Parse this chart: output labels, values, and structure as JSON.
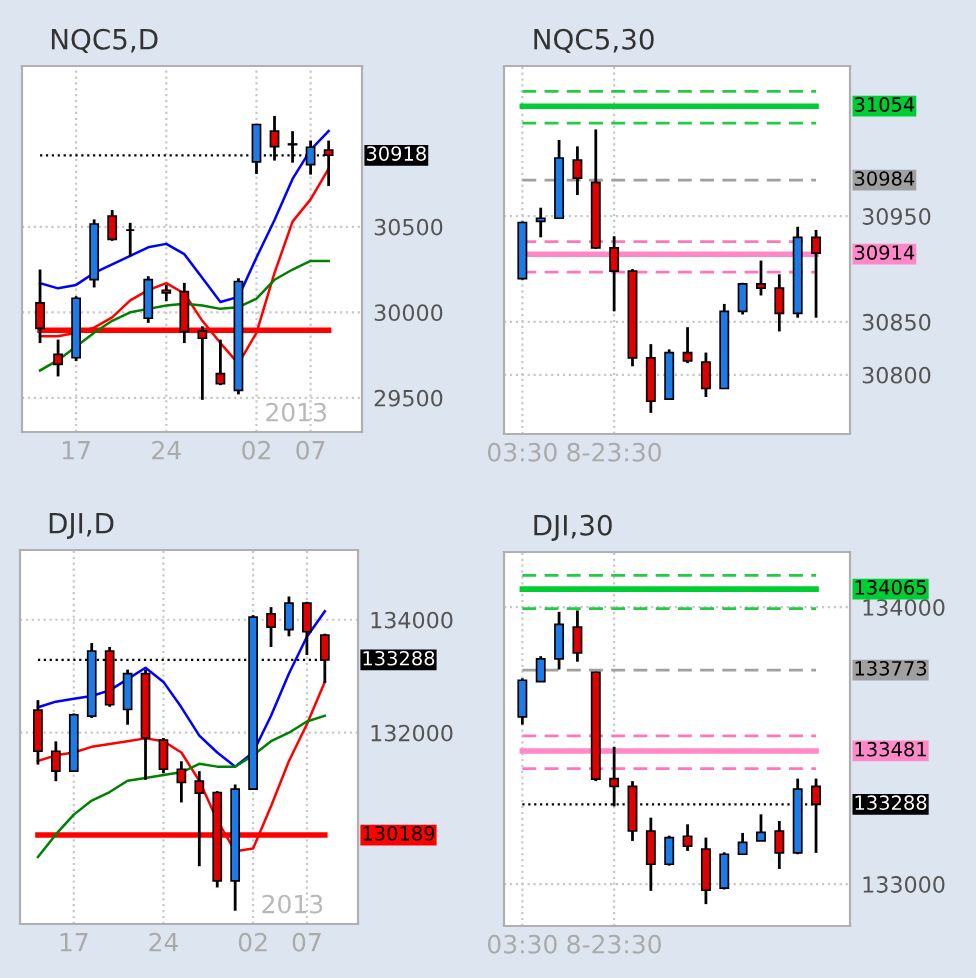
{
  "chart_data": [
    {
      "type": "candlestick",
      "title": "NQC5,D",
      "categories": [
        null,
        null,
        "17",
        null,
        null,
        null,
        null,
        "24",
        null,
        null,
        null,
        null,
        "02",
        null,
        null,
        "07",
        null
      ],
      "ohlc": [
        [
          30055,
          30250,
          29820,
          29906
        ],
        [
          29754,
          29840,
          29625,
          29695
        ],
        [
          29734,
          30094,
          29715,
          30082
        ],
        [
          30191,
          30543,
          30145,
          30516
        ],
        [
          30563,
          30598,
          30418,
          30426
        ],
        [
          30480,
          30523,
          30328,
          30480
        ],
        [
          29965,
          30211,
          29938,
          30191
        ],
        [
          30129,
          30160,
          30066,
          30113
        ],
        [
          30121,
          30172,
          29820,
          29887
        ],
        [
          29891,
          29918,
          29488,
          29848
        ],
        [
          29641,
          29840,
          29574,
          29582
        ],
        [
          29543,
          30199,
          29520,
          30180
        ],
        [
          30879,
          31102,
          30809,
          31098
        ],
        [
          31059,
          31148,
          30887,
          30969
        ],
        [
          30980,
          31059,
          30875,
          30984
        ],
        [
          30863,
          31004,
          30805,
          30965
        ],
        [
          30949,
          31004,
          30738,
          30918
        ]
      ],
      "colors": [
        "#e00000",
        "#e00000",
        "#1e7be6",
        "#1e7be6",
        "#e00000",
        "#000000",
        "#1e7be6",
        "#e00000",
        "#e00000",
        "#e00000",
        "#e00000",
        "#1e7be6",
        "#1e7be6",
        "#e00000",
        "#1e7be6",
        "#1e7be6",
        "#e00000"
      ],
      "series": [
        {
          "type": "line",
          "color": "#0000ff",
          "values": [
            30170,
            30140,
            30160,
            30230,
            30280,
            30330,
            30380,
            30400,
            30340,
            30200,
            30060,
            30090,
            30320,
            30540,
            30780,
            30950,
            31060
          ]
        },
        {
          "type": "line",
          "color": "#ff0000",
          "values": [
            29860,
            29860,
            29880,
            29910,
            29970,
            30070,
            30130,
            30170,
            30110,
            29950,
            29820,
            29700,
            29880,
            30230,
            30530,
            30660,
            30840
          ]
        },
        {
          "type": "line",
          "color": "#008000",
          "values": [
            29660,
            29720,
            29800,
            29880,
            29950,
            30000,
            30020,
            30040,
            30050,
            30040,
            30020,
            30030,
            30080,
            30190,
            30250,
            30300,
            30300
          ]
        }
      ],
      "ref_lines": [
        {
          "axis": "y",
          "value": 29895,
          "color": "#ff0000",
          "line_style": "solid"
        },
        {
          "axis": "y",
          "value": 30918,
          "color": "#000000",
          "line_style": "dotted",
          "label": "30918"
        }
      ],
      "ylim": [
        29300,
        31440
      ],
      "yticks": [
        29500,
        30000,
        30500
      ],
      "grid": true,
      "annotations": [
        "2013"
      ]
    },
    {
      "type": "candlestick",
      "title": "NQC5,30",
      "categories": [
        "03:30",
        null,
        null,
        null,
        null,
        "8-23:30",
        null,
        null,
        null,
        null,
        null,
        null,
        null,
        null,
        null,
        null,
        null
      ],
      "ohlc": [
        [
          30891,
          30945,
          30890,
          30944
        ],
        [
          30945,
          30958,
          30930,
          30948
        ],
        [
          30948,
          31022,
          30948,
          31005
        ],
        [
          31003,
          31016,
          30970,
          30986
        ],
        [
          30982,
          31032,
          30919,
          30920
        ],
        [
          30920,
          30931,
          30860,
          30898
        ],
        [
          30898,
          30900,
          30808,
          30816
        ],
        [
          30816,
          30829,
          30764,
          30775
        ],
        [
          30777,
          30824,
          30777,
          30821
        ],
        [
          30821,
          30845,
          30811,
          30813
        ],
        [
          30812,
          30821,
          30779,
          30787
        ],
        [
          30787,
          30867,
          30787,
          30860
        ],
        [
          30860,
          30887,
          30857,
          30886
        ],
        [
          30886,
          30908,
          30875,
          30882
        ],
        [
          30882,
          30895,
          30841,
          30858
        ],
        [
          30858,
          30940,
          30854,
          30930
        ],
        [
          30930,
          30937,
          30854,
          30915
        ]
      ],
      "colors": [
        "#1e7be6",
        "#1e7be6",
        "#1e7be6",
        "#e00000",
        "#e00000",
        "#e00000",
        "#e00000",
        "#e00000",
        "#1e7be6",
        "#e00000",
        "#e00000",
        "#1e7be6",
        "#1e7be6",
        "#e00000",
        "#e00000",
        "#1e7be6",
        "#e00000"
      ],
      "ref_lines": [
        {
          "axis": "y",
          "value": 31068,
          "color": "#22cc44",
          "line_style": "dashed"
        },
        {
          "axis": "y",
          "value": 31054,
          "color": "#00cc33",
          "line_style": "solid",
          "label": "31054"
        },
        {
          "axis": "y",
          "value": 31038,
          "color": "#22cc44",
          "line_style": "dashed"
        },
        {
          "axis": "y",
          "value": 30984,
          "color": "#a0a0a0",
          "line_style": "dashed",
          "label": "30984"
        },
        {
          "axis": "y",
          "value": 30926,
          "color": "#ff77bb",
          "line_style": "dashed"
        },
        {
          "axis": "y",
          "value": 30914,
          "color": "#ff88c8",
          "line_style": "solid",
          "label": "30914"
        },
        {
          "axis": "y",
          "value": 30897,
          "color": "#ff77bb",
          "line_style": "dashed"
        }
      ],
      "ylim": [
        30744,
        31092
      ],
      "yticks": [
        30800,
        30850,
        30950
      ],
      "grid": true
    },
    {
      "type": "candlestick",
      "title": "DJI,D",
      "categories": [
        null,
        null,
        "17",
        null,
        null,
        null,
        null,
        "24",
        null,
        null,
        null,
        null,
        "02",
        null,
        null,
        "07",
        null
      ],
      "ohlc": [
        [
          132401,
          132577,
          131436,
          131672
        ],
        [
          131672,
          131848,
          131142,
          131319
        ],
        [
          131319,
          132342,
          131319,
          132318
        ],
        [
          132295,
          133588,
          132260,
          133447
        ],
        [
          133447,
          133518,
          132460,
          132495
        ],
        [
          132412,
          133118,
          132142,
          133047
        ],
        [
          133047,
          133118,
          131166,
          131907
        ],
        [
          131871,
          131907,
          131283,
          131354
        ],
        [
          131354,
          131495,
          130766,
          131119
        ],
        [
          131142,
          131319,
          129637,
          130931
        ],
        [
          130942,
          130966,
          129261,
          129378
        ],
        [
          129378,
          131084,
          128849,
          131001
        ],
        [
          131001,
          134082,
          131001,
          134047
        ],
        [
          134106,
          134223,
          133518,
          133871
        ],
        [
          133824,
          134412,
          133706,
          134294
        ],
        [
          134294,
          134318,
          133377,
          133788
        ],
        [
          133729,
          133753,
          132883,
          133288
        ]
      ],
      "colors": [
        "#e00000",
        "#e00000",
        "#1e7be6",
        "#1e7be6",
        "#e00000",
        "#1e7be6",
        "#e00000",
        "#e00000",
        "#e00000",
        "#e00000",
        "#e00000",
        "#1e7be6",
        "#1e7be6",
        "#e00000",
        "#1e7be6",
        "#e00000",
        "#e00000"
      ],
      "series": [
        {
          "type": "line",
          "color": "#0000ff",
          "values": [
            132450,
            132550,
            132600,
            132650,
            132750,
            132950,
            133150,
            132900,
            132450,
            131950,
            131650,
            131400,
            131650,
            132300,
            133050,
            133700,
            134150
          ]
        },
        {
          "type": "line",
          "color": "#ff0000",
          "values": [
            131500,
            131600,
            131650,
            131750,
            131800,
            131850,
            131900,
            131850,
            131650,
            131150,
            130450,
            129900,
            129950,
            130700,
            131500,
            132150,
            132900
          ]
        },
        {
          "type": "line",
          "color": "#008000",
          "values": [
            129800,
            130200,
            130550,
            130800,
            130950,
            131150,
            131200,
            131250,
            131300,
            131450,
            131400,
            131400,
            131600,
            131850,
            132000,
            132200,
            132300
          ]
        }
      ],
      "ref_lines": [
        {
          "axis": "y",
          "value": 130189,
          "color": "#ff0000",
          "line_style": "solid",
          "label": "130189"
        },
        {
          "axis": "y",
          "value": 133288,
          "color": "#000000",
          "line_style": "dotted",
          "label": "133288"
        }
      ],
      "ylim": [
        128614,
        135235
      ],
      "yticks": [
        132000,
        134000
      ],
      "grid": true,
      "annotations": [
        "2013"
      ]
    },
    {
      "type": "candlestick",
      "title": "DJI,30",
      "categories": [
        "03:30",
        null,
        null,
        null,
        null,
        "8-23:30",
        null,
        null,
        null,
        null,
        null,
        null,
        null,
        null,
        null,
        null,
        null
      ],
      "ohlc": [
        [
          133604,
          133743,
          133576,
          133736
        ],
        [
          133731,
          133823,
          133731,
          133813
        ],
        [
          133813,
          133983,
          133775,
          133938
        ],
        [
          133928,
          133988,
          133803,
          133835
        ],
        [
          133765,
          133767,
          133372,
          133379
        ],
        [
          133381,
          133496,
          133281,
          133353
        ],
        [
          133353,
          133372,
          133156,
          133192
        ],
        [
          133192,
          133240,
          132976,
          133072
        ],
        [
          133072,
          133175,
          133067,
          133168
        ],
        [
          133173,
          133216,
          133120,
          133137
        ],
        [
          133127,
          133168,
          132928,
          132978
        ],
        [
          132986,
          133115,
          132981,
          133108
        ],
        [
          133108,
          133185,
          133108,
          133151
        ],
        [
          133156,
          133252,
          133156,
          133187
        ],
        [
          133192,
          133228,
          133055,
          133113
        ],
        [
          133113,
          133381,
          133108,
          133343
        ],
        [
          133353,
          133381,
          133113,
          133288
        ]
      ],
      "colors": [
        "#1e7be6",
        "#1e7be6",
        "#1e7be6",
        "#e00000",
        "#e00000",
        "#e00000",
        "#e00000",
        "#e00000",
        "#1e7be6",
        "#e00000",
        "#e00000",
        "#1e7be6",
        "#1e7be6",
        "#1e7be6",
        "#e00000",
        "#1e7be6",
        "#e00000"
      ],
      "ref_lines": [
        {
          "axis": "y",
          "value": 134115,
          "color": "#22cc44",
          "line_style": "dashed"
        },
        {
          "axis": "y",
          "value": 134065,
          "color": "#00cc33",
          "line_style": "solid",
          "label": "134065"
        },
        {
          "axis": "y",
          "value": 133995,
          "color": "#22cc44",
          "line_style": "dashed"
        },
        {
          "axis": "y",
          "value": 133773,
          "color": "#a0a0a0",
          "line_style": "dashed",
          "label": "133773"
        },
        {
          "axis": "y",
          "value": 133535,
          "color": "#ff77bb",
          "line_style": "dashed"
        },
        {
          "axis": "y",
          "value": 133481,
          "color": "#ff88c8",
          "line_style": "solid",
          "label": "133481"
        },
        {
          "axis": "y",
          "value": 133417,
          "color": "#ff77bb",
          "line_style": "dashed"
        },
        {
          "axis": "y",
          "value": 133288,
          "color": "#000000",
          "line_style": "dotted",
          "label": "133288"
        }
      ],
      "ylim": [
        132849,
        134199
      ],
      "yticks": [
        133000,
        134000
      ],
      "grid": true
    }
  ]
}
